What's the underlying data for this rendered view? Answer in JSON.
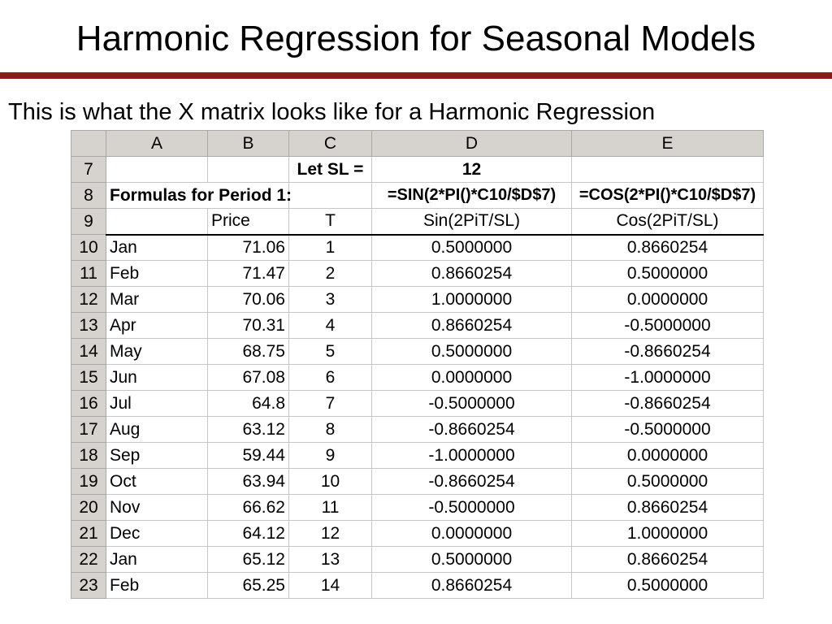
{
  "slide": {
    "title": "Harmonic Regression for Seasonal Models",
    "subtitle": "This is what the X matrix looks like for a Harmonic Regression"
  },
  "sheet": {
    "columns": [
      "A",
      "B",
      "C",
      "D",
      "E"
    ],
    "row7": {
      "num": "7",
      "c": "Let SL =",
      "d": "12"
    },
    "row8": {
      "num": "8",
      "a": "Formulas for Period 1:",
      "d": "=SIN(2*PI()*C10/$D$7)",
      "e": "=COS(2*PI()*C10/$D$7)"
    },
    "row9": {
      "num": "9",
      "b": "Price",
      "c": "T",
      "d": "Sin(2PiT/SL)",
      "e": "Cos(2PiT/SL)"
    },
    "rows": [
      {
        "num": "10",
        "month": "Jan",
        "price": "71.06",
        "t": "1",
        "sin": "0.5000000",
        "cos": "0.8660254"
      },
      {
        "num": "11",
        "month": "Feb",
        "price": "71.47",
        "t": "2",
        "sin": "0.8660254",
        "cos": "0.5000000"
      },
      {
        "num": "12",
        "month": "Mar",
        "price": "70.06",
        "t": "3",
        "sin": "1.0000000",
        "cos": "0.0000000"
      },
      {
        "num": "13",
        "month": "Apr",
        "price": "70.31",
        "t": "4",
        "sin": "0.8660254",
        "cos": "-0.5000000"
      },
      {
        "num": "14",
        "month": "May",
        "price": "68.75",
        "t": "5",
        "sin": "0.5000000",
        "cos": "-0.8660254"
      },
      {
        "num": "15",
        "month": "Jun",
        "price": "67.08",
        "t": "6",
        "sin": "0.0000000",
        "cos": "-1.0000000"
      },
      {
        "num": "16",
        "month": "Jul",
        "price": "64.8",
        "t": "7",
        "sin": "-0.5000000",
        "cos": "-0.8660254"
      },
      {
        "num": "17",
        "month": "Aug",
        "price": "63.12",
        "t": "8",
        "sin": "-0.8660254",
        "cos": "-0.5000000"
      },
      {
        "num": "18",
        "month": "Sep",
        "price": "59.44",
        "t": "9",
        "sin": "-1.0000000",
        "cos": "0.0000000"
      },
      {
        "num": "19",
        "month": "Oct",
        "price": "63.94",
        "t": "10",
        "sin": "-0.8660254",
        "cos": "0.5000000"
      },
      {
        "num": "20",
        "month": "Nov",
        "price": "66.62",
        "t": "11",
        "sin": "-0.5000000",
        "cos": "0.8660254"
      },
      {
        "num": "21",
        "month": "Dec",
        "price": "64.12",
        "t": "12",
        "sin": "0.0000000",
        "cos": "1.0000000"
      },
      {
        "num": "22",
        "month": "Jan",
        "price": "65.12",
        "t": "13",
        "sin": "0.5000000",
        "cos": "0.8660254"
      },
      {
        "num": "23",
        "month": "Feb",
        "price": "65.25",
        "t": "14",
        "sin": "0.8660254",
        "cos": "0.5000000"
      }
    ]
  },
  "colors": {
    "title_rule": "#8b1a1a",
    "header_bg": "#d6d3ce",
    "gridline": "#c6c6c6"
  }
}
